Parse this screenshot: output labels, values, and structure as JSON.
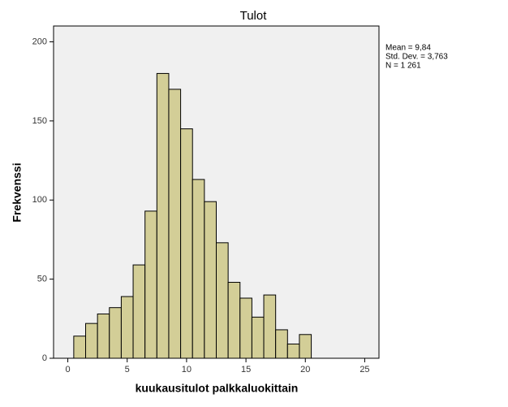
{
  "chart_data": {
    "type": "histogram",
    "title": "Tulot",
    "xlabel": "kuukausitulot palkkaluokittain",
    "ylabel": "Frekvenssi",
    "bins": [
      0.5,
      1.5,
      2.5,
      3.5,
      4.5,
      5.5,
      6.5,
      7.5,
      8.5,
      9.5,
      10.5,
      11.5,
      12.5,
      13.5,
      14.5,
      15.5,
      16.5,
      17.5,
      18.5,
      19.5,
      20.5
    ],
    "counts": [
      14,
      22,
      28,
      32,
      39,
      59,
      93,
      180,
      170,
      145,
      113,
      99,
      73,
      48,
      38,
      26,
      40,
      18,
      9,
      15
    ],
    "color": "#d3ce97",
    "xlim": [
      -1.2,
      26.2
    ],
    "xticks": [
      0,
      5,
      10,
      15,
      20,
      25
    ],
    "ylim": [
      0,
      210
    ],
    "yticks": [
      0,
      50,
      100,
      150,
      200
    ],
    "annotations": [
      "Mean = 9,84",
      "Std. Dev. = 3,763",
      "N = 1 261"
    ]
  }
}
